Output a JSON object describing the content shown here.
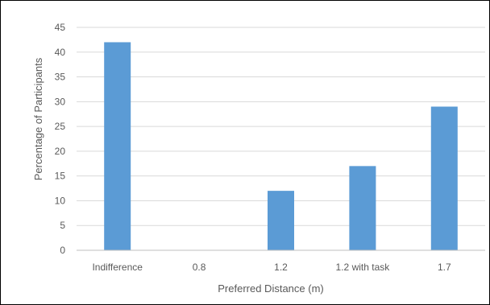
{
  "chart_data": {
    "type": "bar",
    "title": "",
    "xlabel": "Preferred Distance (m)",
    "ylabel": "Percentage of Participants",
    "categories": [
      "Indifference",
      "0.8",
      "1.2",
      "1.2 with task",
      "1.7"
    ],
    "values": [
      42,
      0,
      12,
      17,
      29
    ],
    "ylim": [
      0,
      45
    ],
    "yticks": [
      "0",
      "5",
      "10",
      "15",
      "20",
      "25",
      "30",
      "35",
      "40",
      "45"
    ],
    "grid": true,
    "legend": "none",
    "bar_color": "#5b9bd5",
    "grid_color": "#d9d9d9",
    "axis_color": "#bfbfbf"
  }
}
